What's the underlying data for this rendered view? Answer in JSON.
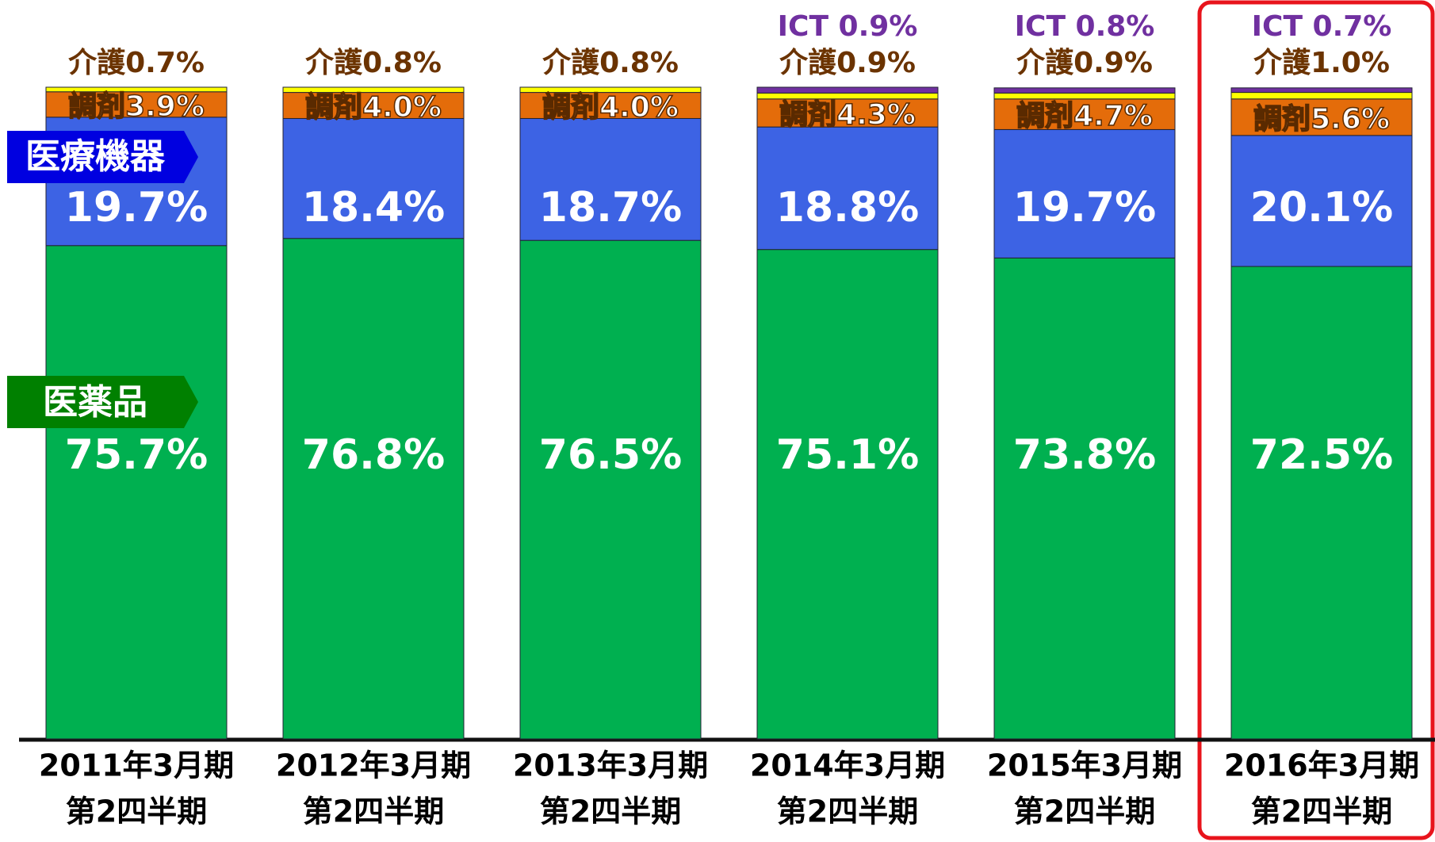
{
  "chart_data": {
    "type": "stacked_bar",
    "categories": [
      [
        "2011年3月期",
        "第2四半期"
      ],
      [
        "2012年3月期",
        "第2四半期"
      ],
      [
        "2013年3月期",
        "第2四半期"
      ],
      [
        "2014年3月期",
        "第2四半期"
      ],
      [
        "2015年3月期",
        "第2四半期"
      ],
      [
        "2016年3月期",
        "第2四半期"
      ]
    ],
    "ylim": [
      0,
      100
    ],
    "series": [
      {
        "name": "医薬品",
        "color": "#00b050",
        "values": [
          75.7,
          76.8,
          76.5,
          75.1,
          73.8,
          72.5
        ],
        "value_labels": [
          "75.7%",
          "76.8%",
          "76.5%",
          "75.1%",
          "73.8%",
          "72.5%"
        ]
      },
      {
        "name": "医療機器",
        "color": "#3d63e4",
        "values": [
          19.7,
          18.4,
          18.7,
          18.8,
          19.7,
          20.1
        ],
        "value_labels": [
          "19.7%",
          "18.4%",
          "18.7%",
          "18.8%",
          "19.7%",
          "20.1%"
        ]
      },
      {
        "name": "調剤",
        "color": "#e46c0a",
        "values": [
          3.9,
          4.0,
          4.0,
          4.3,
          4.7,
          5.6
        ],
        "value_labels": [
          "調剤3.9%",
          "調剤4.0%",
          "調剤4.0%",
          "調剤4.3%",
          "調剤4.7%",
          "調剤5.6%"
        ]
      },
      {
        "name": "介護",
        "color": "#ffff00",
        "values": [
          0.7,
          0.8,
          0.8,
          0.9,
          0.9,
          1.0
        ],
        "value_labels": [
          "介護0.7%",
          "介護0.8%",
          "介護0.8%",
          "介護0.9%",
          "介護0.9%",
          "介護1.0%"
        ]
      },
      {
        "name": "ICT",
        "color": "#7030a0",
        "values": [
          null,
          null,
          null,
          0.9,
          0.8,
          0.7
        ],
        "value_labels": [
          null,
          null,
          null,
          "ICT 0.9%",
          "ICT 0.8%",
          "ICT 0.7%"
        ]
      }
    ]
  }
}
